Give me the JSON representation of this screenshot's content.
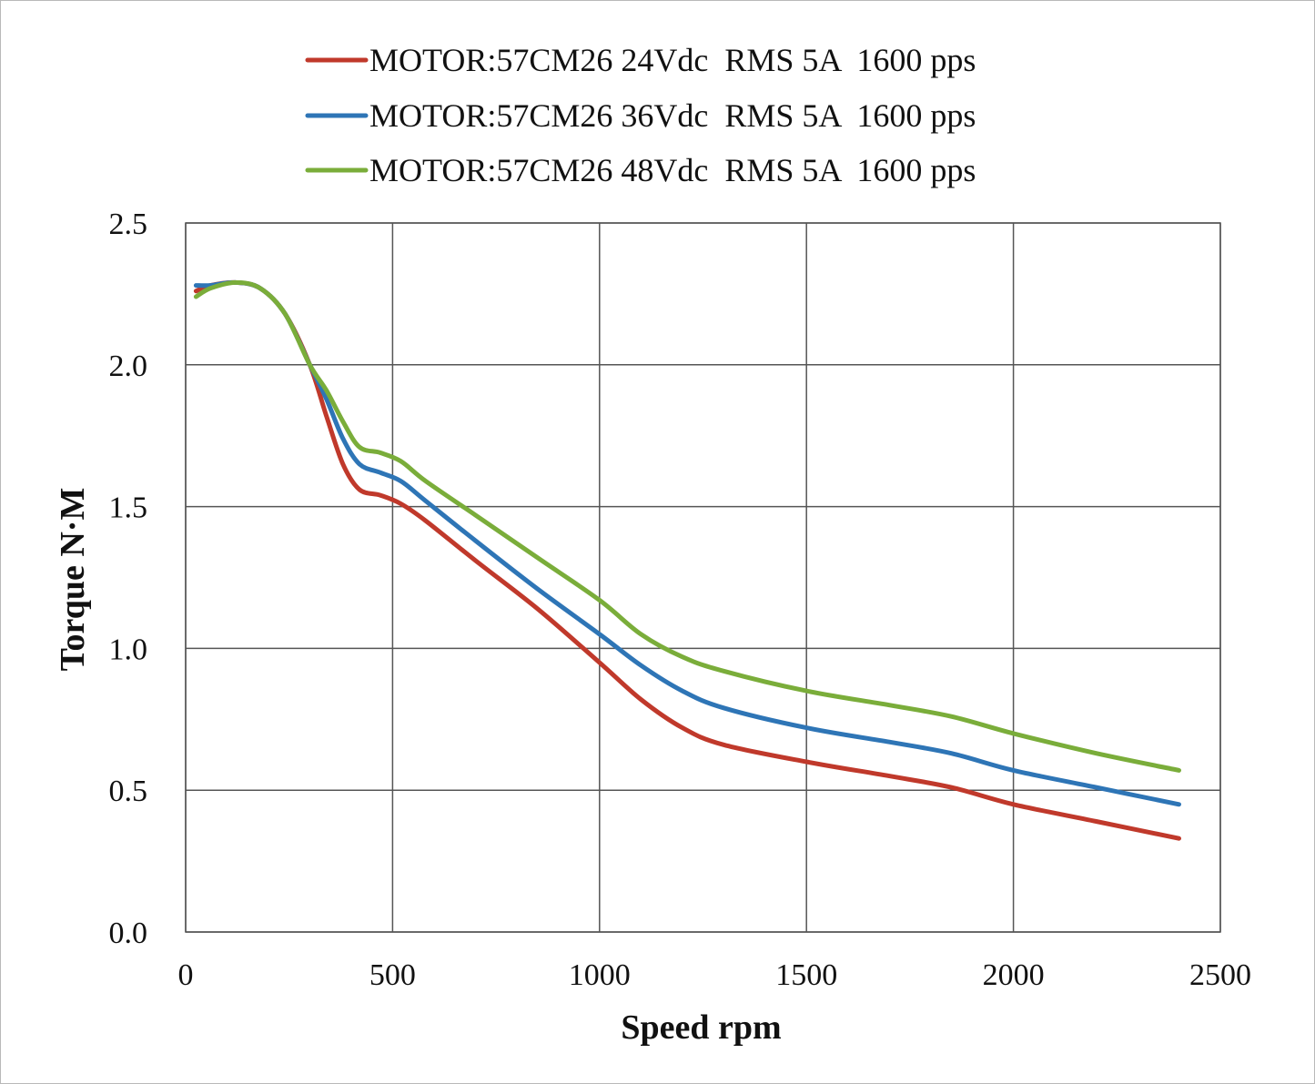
{
  "chart_data": {
    "type": "line",
    "title": "",
    "xlabel": "Speed rpm",
    "ylabel": "Torque N·M",
    "xlim": [
      0,
      2500
    ],
    "ylim": [
      0,
      2.5
    ],
    "xticks": [
      0,
      500,
      1000,
      1500,
      2000,
      2500
    ],
    "xtick_labels": [
      "0",
      "500",
      "1000",
      "1500",
      "2000",
      "2500"
    ],
    "yticks": [
      0,
      0.5,
      1.0,
      1.5,
      2.0,
      2.5
    ],
    "ytick_labels": [
      "0.0",
      "0.5",
      "1.0",
      "1.5",
      "2.0",
      "2.5"
    ],
    "grid": true,
    "legend_position": "top-center",
    "series": [
      {
        "name": "MOTOR:57CM26 24Vdc  RMS 5A  1600 pps",
        "color": "#c0392b",
        "x": [
          25,
          60,
          120,
          180,
          240,
          300,
          340,
          380,
          420,
          470,
          520,
          580,
          700,
          850,
          1000,
          1100,
          1200,
          1300,
          1500,
          1700,
          1850,
          2000,
          2200,
          2400
        ],
        "y": [
          2.26,
          2.28,
          2.29,
          2.27,
          2.18,
          2.0,
          1.82,
          1.65,
          1.56,
          1.54,
          1.51,
          1.45,
          1.31,
          1.14,
          0.95,
          0.82,
          0.72,
          0.66,
          0.6,
          0.55,
          0.51,
          0.45,
          0.39,
          0.33
        ]
      },
      {
        "name": "MOTOR:57CM26 36Vdc  RMS 5A  1600 pps",
        "color": "#2e75b6",
        "x": [
          25,
          60,
          120,
          180,
          240,
          300,
          340,
          380,
          420,
          470,
          520,
          580,
          700,
          850,
          1000,
          1100,
          1200,
          1300,
          1500,
          1700,
          1850,
          2000,
          2200,
          2400
        ],
        "y": [
          2.28,
          2.28,
          2.29,
          2.27,
          2.18,
          2.0,
          1.88,
          1.74,
          1.65,
          1.62,
          1.59,
          1.52,
          1.38,
          1.21,
          1.05,
          0.94,
          0.85,
          0.79,
          0.72,
          0.67,
          0.63,
          0.57,
          0.51,
          0.45
        ]
      },
      {
        "name": "MOTOR:57CM26 48Vdc  RMS 5A  1600 pps",
        "color": "#7aad3a",
        "x": [
          25,
          60,
          120,
          180,
          240,
          300,
          340,
          380,
          420,
          470,
          520,
          580,
          700,
          850,
          1000,
          1100,
          1200,
          1300,
          1500,
          1700,
          1850,
          2000,
          2200,
          2400
        ],
        "y": [
          2.24,
          2.27,
          2.29,
          2.27,
          2.18,
          2.0,
          1.91,
          1.8,
          1.71,
          1.69,
          1.66,
          1.59,
          1.47,
          1.32,
          1.17,
          1.05,
          0.97,
          0.92,
          0.85,
          0.8,
          0.76,
          0.7,
          0.63,
          0.57
        ]
      }
    ]
  }
}
